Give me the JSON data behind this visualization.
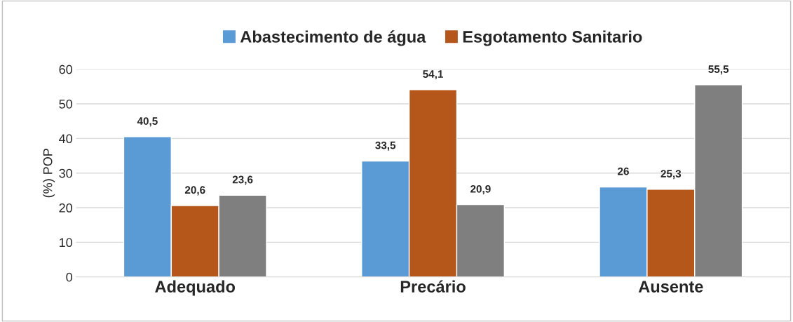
{
  "chart_data": {
    "type": "bar",
    "ylabel": "(%) POP",
    "categories": [
      "Adequado",
      "Precário",
      "Ausente"
    ],
    "series": [
      {
        "name": "Abastecimento de água",
        "color": "#5b9bd5",
        "values": [
          40.5,
          33.5,
          26
        ],
        "value_labels": [
          "40,5",
          "33,5",
          "26"
        ]
      },
      {
        "name": "Esgotamento Sanitario",
        "color": "#b5571a",
        "values": [
          20.6,
          54.1,
          25.3
        ],
        "value_labels": [
          "20,6",
          "54,1",
          "25,3"
        ]
      },
      {
        "color": "#7f7f7f",
        "values": [
          23.6,
          20.9,
          55.5
        ],
        "value_labels": [
          "23,6",
          "20,9",
          "55,5"
        ]
      }
    ],
    "ylim": [
      0,
      60
    ],
    "yticks": [
      0,
      10,
      20,
      30,
      40,
      50,
      60
    ],
    "grid": "y",
    "legend": "top"
  }
}
